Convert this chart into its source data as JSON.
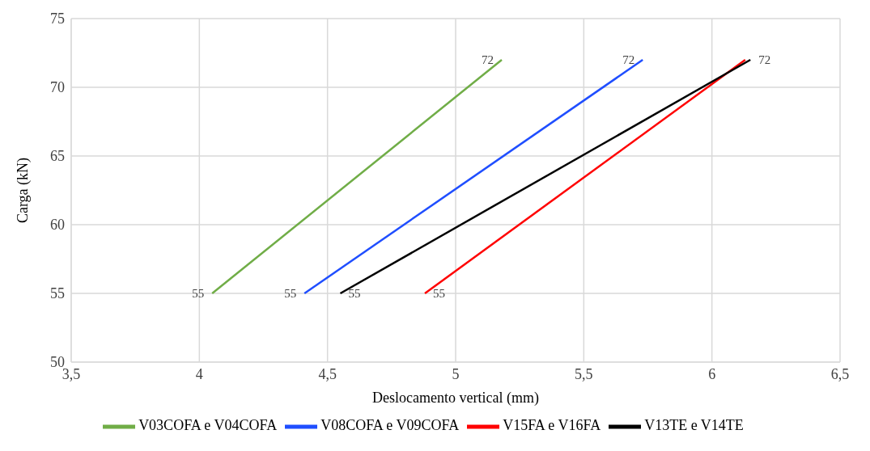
{
  "chart_data": {
    "type": "line",
    "xlabel": "Deslocamento  vertical (mm)",
    "ylabel": "Carga (kN)",
    "xlim": [
      3.5,
      6.5
    ],
    "xticks": [
      {
        "value": 3.5,
        "label": "3,5"
      },
      4,
      {
        "value": 4.5,
        "label": "4,5"
      },
      5,
      {
        "value": 5.5,
        "label": "5,5"
      },
      6,
      {
        "value": 6.5,
        "label": "6,5"
      }
    ],
    "ylim": [
      50,
      75
    ],
    "yticks": [
      50,
      55,
      60,
      65,
      70,
      75
    ],
    "grid": true,
    "legend": "bottom",
    "marker": "none",
    "line_style": "solid",
    "series": [
      {
        "name": "V03COFA e V04COFA",
        "color": "#70ad47",
        "x": [
          4.05,
          5.18
        ],
        "values": [
          55,
          72
        ],
        "value_labels": [
          "55",
          "72"
        ]
      },
      {
        "name": "V08COFA e V09COFA",
        "color": "#1f4eff",
        "x": [
          4.41,
          5.73
        ],
        "values": [
          55,
          72
        ],
        "value_labels": [
          "55",
          "72"
        ]
      },
      {
        "name": "V15FA e V16FA",
        "color": "#ff0000",
        "x": [
          4.88,
          6.13
        ],
        "values": [
          55,
          72
        ],
        "value_labels": [
          "55",
          null
        ]
      },
      {
        "name": "V13TE e V14TE",
        "color": "#000000",
        "x": [
          4.55,
          6.15
        ],
        "values": [
          55,
          72
        ],
        "value_labels": [
          "55",
          "72"
        ]
      }
    ]
  }
}
